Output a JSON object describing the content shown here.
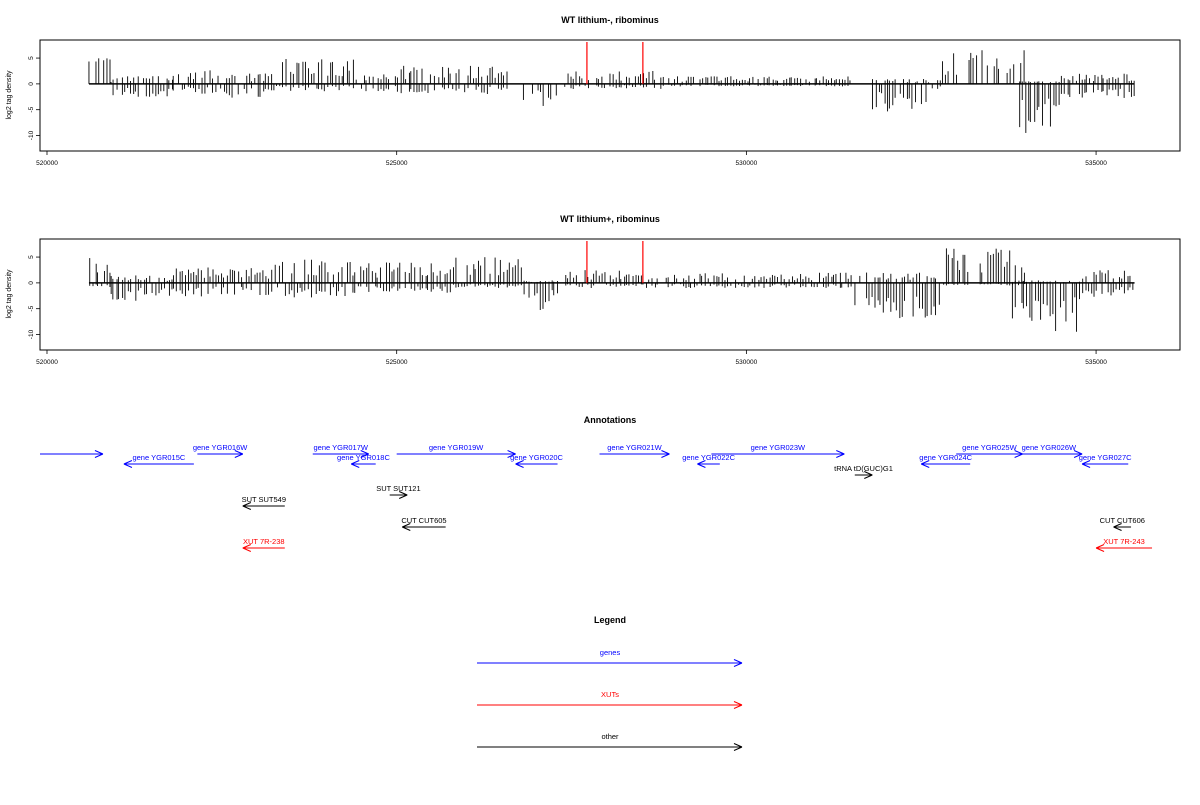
{
  "colors": {
    "gene": "#0000ff",
    "xut": "#ff0000",
    "other": "#000000",
    "marker": "#ff0000",
    "bar": "#000000"
  },
  "chart_data": [
    {
      "type": "bar",
      "title": "WT lithium-, ribominus",
      "ylabel": "log2 tag density",
      "xlim": [
        519900,
        536200
      ],
      "ylim": [
        -13,
        8.5
      ],
      "xticks": [
        520000,
        525000,
        530000,
        535000
      ],
      "yticks": [
        -10,
        -5,
        0,
        5
      ],
      "data_range": [
        520600,
        535550
      ],
      "markers": [
        527720,
        528520
      ],
      "profile": [
        {
          "from": 520600,
          "to": 520900,
          "plus": 5,
          "minus": 0
        },
        {
          "from": 520900,
          "to": 521800,
          "plus": 1.5,
          "minus": -2.5
        },
        {
          "from": 521800,
          "to": 522400,
          "plus": 3,
          "minus": -2
        },
        {
          "from": 522400,
          "to": 523200,
          "plus": 2,
          "minus": -3
        },
        {
          "from": 523200,
          "to": 524400,
          "plus": 5,
          "minus": -1.5
        },
        {
          "from": 524400,
          "to": 525000,
          "plus": 2,
          "minus": -1.5
        },
        {
          "from": 525000,
          "to": 526600,
          "plus": 3.5,
          "minus": -2
        },
        {
          "from": 526800,
          "to": 527300,
          "plus": 0,
          "minus": -5
        },
        {
          "from": 527400,
          "to": 528800,
          "plus": 2.5,
          "minus": -1
        },
        {
          "from": 528800,
          "to": 531500,
          "plus": 1.5,
          "minus": -0.5
        },
        {
          "from": 531800,
          "to": 532600,
          "plus": 1,
          "minus": -5.5
        },
        {
          "from": 532600,
          "to": 532800,
          "plus": 1,
          "minus": -1
        },
        {
          "from": 532800,
          "to": 534000,
          "plus": 7,
          "minus": 0
        },
        {
          "from": 533900,
          "to": 534500,
          "plus": 0.5,
          "minus": -10
        },
        {
          "from": 534500,
          "to": 535550,
          "plus": 2,
          "minus": -3
        }
      ]
    },
    {
      "type": "bar",
      "title": "WT lithium+, ribominus",
      "ylabel": "log2 tag density",
      "xlim": [
        519900,
        536200
      ],
      "ylim": [
        -13,
        8.5
      ],
      "xticks": [
        520000,
        525000,
        530000,
        535000
      ],
      "yticks": [
        -10,
        -5,
        0,
        5
      ],
      "data_range": [
        520600,
        535550
      ],
      "markers": [
        527720,
        528520
      ],
      "profile": [
        {
          "from": 520600,
          "to": 520900,
          "plus": 5,
          "minus": -1
        },
        {
          "from": 520900,
          "to": 521800,
          "plus": 1.5,
          "minus": -3.5
        },
        {
          "from": 521800,
          "to": 523200,
          "plus": 3,
          "minus": -3
        },
        {
          "from": 523200,
          "to": 524400,
          "plus": 4.5,
          "minus": -3
        },
        {
          "from": 524400,
          "to": 525800,
          "plus": 4,
          "minus": -2
        },
        {
          "from": 525800,
          "to": 526800,
          "plus": 5,
          "minus": -1
        },
        {
          "from": 526800,
          "to": 527300,
          "plus": 0.5,
          "minus": -5.5
        },
        {
          "from": 527400,
          "to": 528800,
          "plus": 2.5,
          "minus": -1
        },
        {
          "from": 528800,
          "to": 531500,
          "plus": 2,
          "minus": -1
        },
        {
          "from": 531500,
          "to": 532800,
          "plus": 2,
          "minus": -7
        },
        {
          "from": 532800,
          "to": 534000,
          "plus": 7,
          "minus": -0.5
        },
        {
          "from": 533800,
          "to": 534800,
          "plus": 0.5,
          "minus": -10
        },
        {
          "from": 534800,
          "to": 535550,
          "plus": 2.5,
          "minus": -3
        }
      ]
    }
  ],
  "annotations": {
    "title": "Annotations",
    "xlim": [
      519900,
      536200
    ],
    "features": [
      {
        "label": "",
        "type": "gene",
        "strand": "+",
        "start": 519900,
        "end": 520800,
        "row": 0
      },
      {
        "label": "gene YGR015C",
        "type": "gene",
        "strand": "-",
        "start": 521100,
        "end": 522100,
        "row": 1
      },
      {
        "label": "gene YGR016W",
        "type": "gene",
        "strand": "+",
        "start": 522150,
        "end": 522800,
        "row": 0
      },
      {
        "label": "gene YGR017W",
        "type": "gene",
        "strand": "+",
        "start": 523800,
        "end": 524600,
        "row": 0
      },
      {
        "label": "gene YGR018C",
        "type": "gene",
        "strand": "-",
        "start": 524350,
        "end": 524700,
        "row": 1
      },
      {
        "label": "gene YGR019W",
        "type": "gene",
        "strand": "+",
        "start": 525000,
        "end": 526700,
        "row": 0
      },
      {
        "label": "gene YGR020C",
        "type": "gene",
        "strand": "-",
        "start": 526700,
        "end": 527300,
        "row": 1
      },
      {
        "label": "gene YGR021W",
        "type": "gene",
        "strand": "+",
        "start": 527900,
        "end": 528900,
        "row": 0
      },
      {
        "label": "gene YGR022C",
        "type": "gene",
        "strand": "-",
        "start": 529300,
        "end": 529620,
        "row": 1
      },
      {
        "label": "gene YGR023W",
        "type": "gene",
        "strand": "+",
        "start": 529500,
        "end": 531400,
        "row": 0
      },
      {
        "label": "tRNA tD(GUC)G1",
        "type": "other",
        "strand": "+",
        "start": 531550,
        "end": 531800,
        "row": 2
      },
      {
        "label": "gene YGR024C",
        "type": "gene",
        "strand": "-",
        "start": 532500,
        "end": 533200,
        "row": 1
      },
      {
        "label": "gene YGR025W",
        "type": "gene",
        "strand": "+",
        "start": 533000,
        "end": 533950,
        "row": 0
      },
      {
        "label": "gene YGR026W",
        "type": "gene",
        "strand": "+",
        "start": 533850,
        "end": 534800,
        "row": 0
      },
      {
        "label": "gene YGR027C",
        "type": "gene",
        "strand": "-",
        "start": 534800,
        "end": 535460,
        "row": 1
      },
      {
        "label": "SUT SUT549",
        "type": "other",
        "strand": "-",
        "start": 522800,
        "end": 523400,
        "row": 4
      },
      {
        "label": "SUT SUT121",
        "type": "other",
        "strand": "+",
        "start": 524900,
        "end": 525150,
        "row": 3
      },
      {
        "label": "CUT CUT605",
        "type": "other",
        "strand": "-",
        "start": 525080,
        "end": 525700,
        "row": 5
      },
      {
        "label": "CUT CUT606",
        "type": "other",
        "strand": "-",
        "start": 535250,
        "end": 535500,
        "row": 5
      },
      {
        "label": "XUT 7R-238",
        "type": "xut",
        "strand": "-",
        "start": 522800,
        "end": 523400,
        "row": 6
      },
      {
        "label": "XUT 7R-243",
        "type": "xut",
        "strand": "-",
        "start": 535000,
        "end": 535800,
        "row": 6
      }
    ]
  },
  "legend": {
    "title": "Legend",
    "items": [
      {
        "label": "genes",
        "type": "gene"
      },
      {
        "label": "XUTs",
        "type": "xut"
      },
      {
        "label": "other",
        "type": "other"
      }
    ]
  }
}
